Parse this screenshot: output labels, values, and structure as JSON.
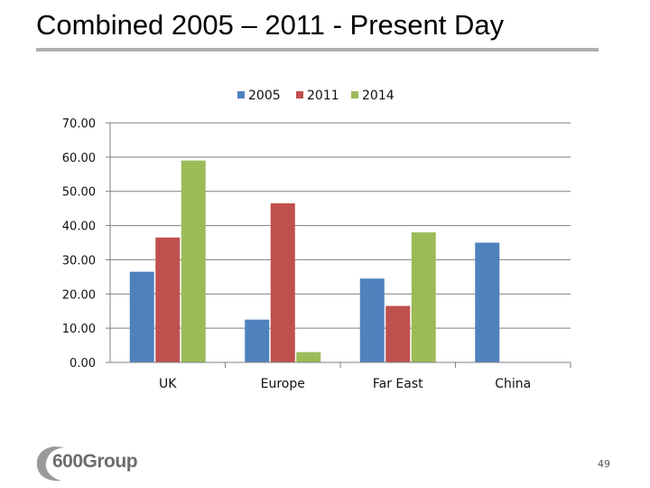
{
  "slide": {
    "title": "Combined 2005 – 2011 - Present Day",
    "page_number": "49",
    "logo_text": "600Group"
  },
  "colors": {
    "2005": "#4f81bd",
    "2011": "#c0504d",
    "2014": "#9bbb59",
    "gridline": "#7f7f7f",
    "title_rule": "#b0b0b0"
  },
  "chart_data": {
    "type": "bar",
    "title": "",
    "xlabel": "",
    "ylabel": "",
    "categories": [
      "UK",
      "Europe",
      "Far East",
      "China"
    ],
    "series": [
      {
        "name": "2005",
        "values": [
          26.5,
          12.5,
          24.5,
          35.0
        ]
      },
      {
        "name": "2011",
        "values": [
          36.5,
          46.5,
          16.5,
          0
        ]
      },
      {
        "name": "2014",
        "values": [
          59.0,
          3.0,
          38.0,
          0
        ]
      }
    ],
    "ylim": [
      0,
      70
    ],
    "yticks": [
      "0.00",
      "10.00",
      "20.00",
      "30.00",
      "40.00",
      "50.00",
      "60.00",
      "70.00"
    ],
    "grid": true,
    "legend_position": "top"
  }
}
